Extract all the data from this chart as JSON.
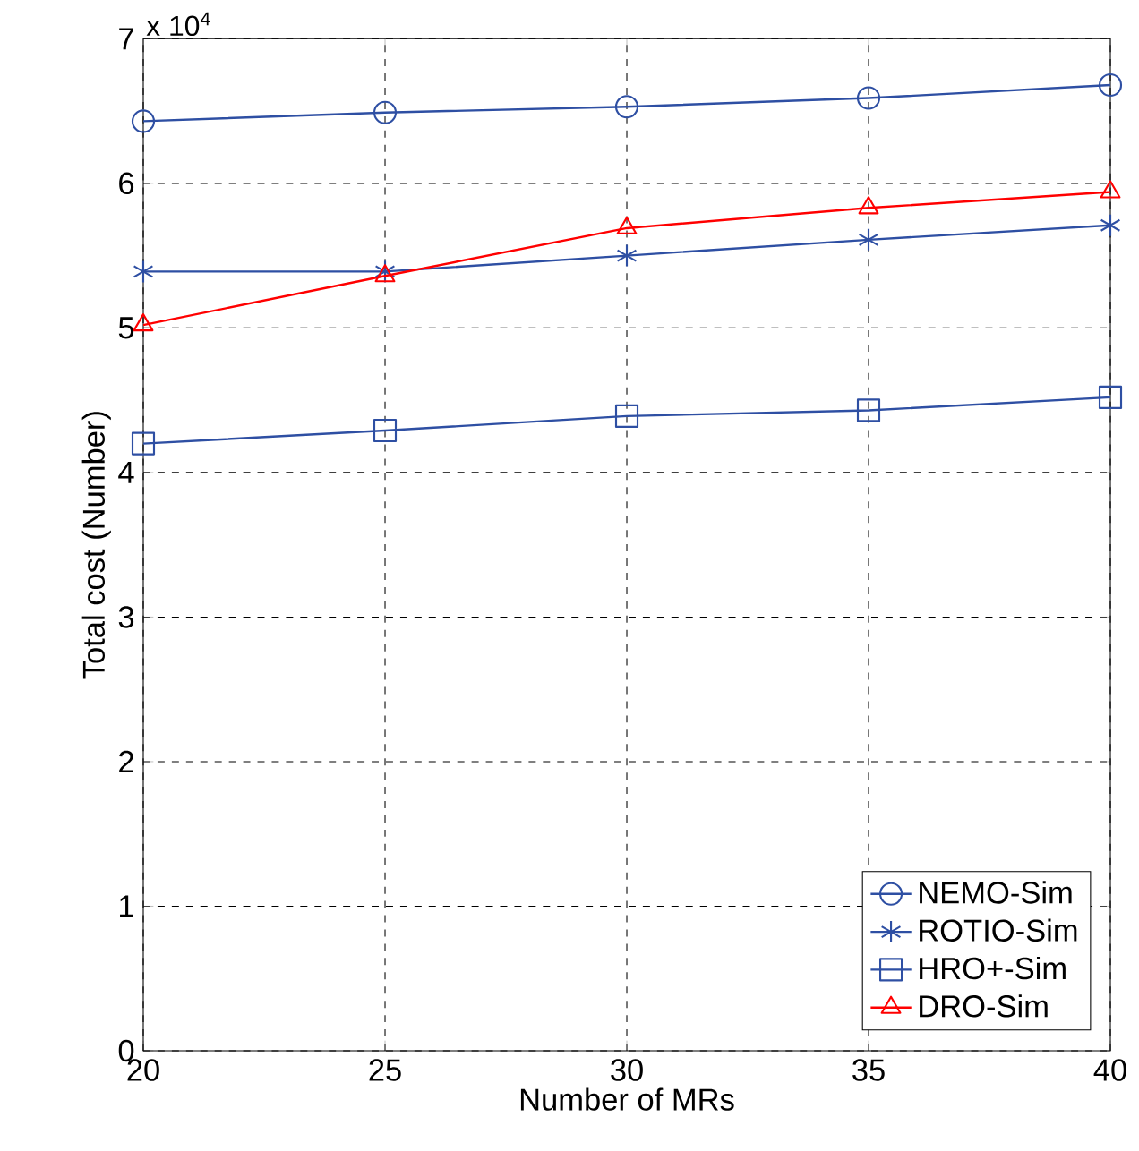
{
  "chart_data": {
    "type": "line",
    "xlabel": "Number of MRs",
    "ylabel": "Total cost (Number)",
    "annotations": [
      "x 10$^{4}$"
    ],
    "x": [
      20,
      25,
      30,
      35,
      40
    ],
    "xlim": [
      20,
      40
    ],
    "xticks": [
      20,
      25,
      30,
      35,
      40
    ],
    "ylim": [
      0,
      7
    ],
    "yticks": [
      0,
      1,
      2,
      3,
      4,
      5,
      6,
      7
    ],
    "grid": true,
    "legend": "bottom right",
    "line_style": "solid",
    "series": [
      {
        "name": "NEMO-Sim",
        "color": "#2e4fa3",
        "marker": "circle",
        "values": [
          6.43,
          6.49,
          6.53,
          6.59,
          6.68
        ]
      },
      {
        "name": "ROTIO-Sim",
        "color": "#2e4fa3",
        "marker": "cross",
        "values": [
          5.39,
          5.39,
          5.5,
          5.61,
          5.71
        ]
      },
      {
        "name": "HRO+-Sim",
        "color": "#2e4fa3",
        "marker": "square",
        "values": [
          4.2,
          4.29,
          4.39,
          4.43,
          4.52
        ]
      },
      {
        "name": "DRO-Sim",
        "color": "#ff0000",
        "marker": "triangle",
        "values": [
          5.02,
          5.36,
          5.69,
          5.83,
          5.94
        ]
      }
    ]
  }
}
